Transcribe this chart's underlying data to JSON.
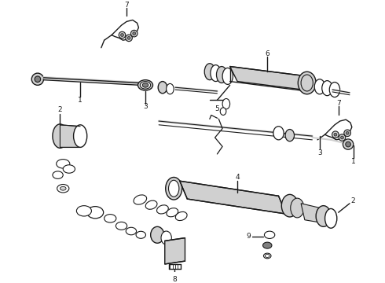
{
  "background": "#ffffff",
  "line_color": "#1a1a1a",
  "gray_fill": "#b0b0b0",
  "gray_light": "#d0d0d0",
  "gray_dark": "#808080",
  "figsize": [
    4.9,
    3.6
  ],
  "dpi": 100
}
